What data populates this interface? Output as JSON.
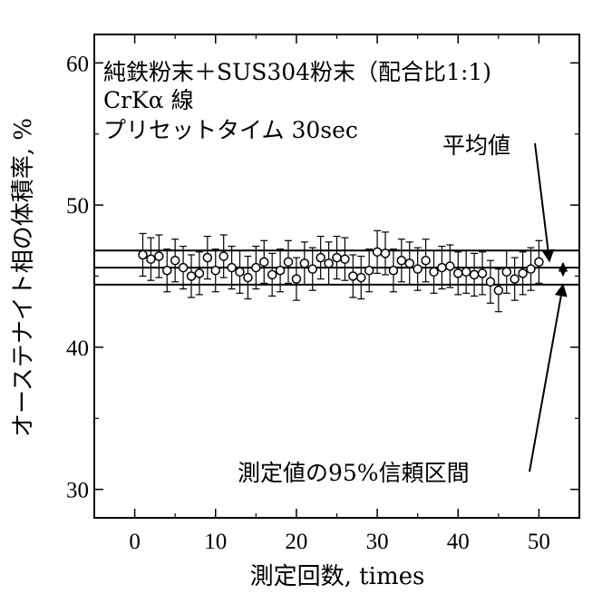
{
  "chart_data": {
    "type": "scatter",
    "xlabel": "測定回数, times",
    "ylabel": "オーステナイト相の体積率, %",
    "xlim": [
      -5,
      55
    ],
    "ylim": [
      28,
      62
    ],
    "x_ticks": [
      "0",
      "10",
      "20",
      "30",
      "40",
      "50"
    ],
    "y_ticks": [
      "30",
      "40",
      "50",
      "60"
    ],
    "grid": false,
    "info_lines": [
      "純鉄粉末＋SUS304粉末（配合比1:1)",
      "CrKα 線",
      "プリセットタイム 30sec"
    ],
    "annotations": {
      "mean": "平均値",
      "ci": "測定値の95%信頼区間"
    },
    "mean": 45.6,
    "ci_upper": 46.8,
    "ci_lower": 44.4,
    "error_bar": 1.5,
    "series": [
      {
        "x": [
          1,
          2,
          3,
          4,
          5,
          6,
          7,
          8,
          9,
          10,
          11,
          12,
          13,
          14,
          15,
          16,
          17,
          18,
          19,
          20,
          21,
          22,
          23,
          24,
          25,
          26,
          27,
          28,
          29,
          30,
          31,
          32,
          33,
          34,
          35,
          36,
          37,
          38,
          39,
          40,
          41,
          42,
          43,
          44,
          45,
          46,
          47,
          48,
          49,
          50
        ],
        "values": [
          46.5,
          46.2,
          46.4,
          45.4,
          46.1,
          45.6,
          45.0,
          45.2,
          46.3,
          45.4,
          46.4,
          45.6,
          45.3,
          44.9,
          45.6,
          46.0,
          45.1,
          45.4,
          46.0,
          44.8,
          45.9,
          45.5,
          46.3,
          45.9,
          46.3,
          46.2,
          45.0,
          44.9,
          45.4,
          46.7,
          46.6,
          45.4,
          46.1,
          45.9,
          45.5,
          46.1,
          45.3,
          45.6,
          45.7,
          45.2,
          45.3,
          45.1,
          45.2,
          44.6,
          44.0,
          45.3,
          44.8,
          45.2,
          45.5,
          46.0
        ]
      }
    ]
  },
  "colors": {
    "stroke": "#000000",
    "background": "#ffffff"
  }
}
